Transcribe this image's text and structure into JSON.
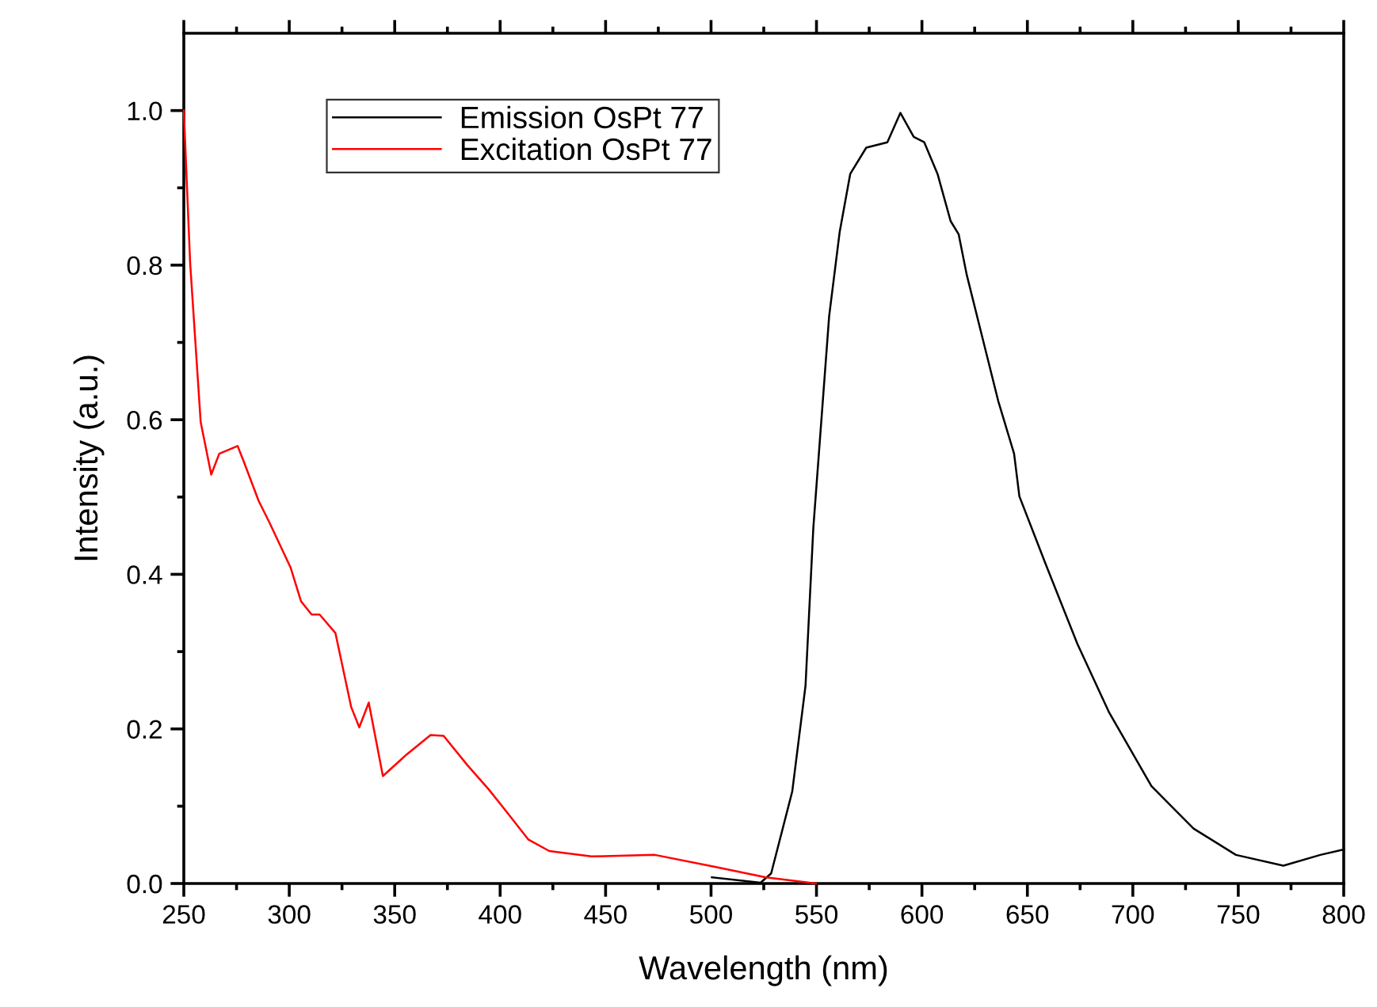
{
  "chart_data": {
    "type": "line",
    "xlabel": "Wavelength (nm)",
    "ylabel": "Intensity (a.u.)",
    "xlim": [
      250,
      800
    ],
    "xticks": [
      250,
      300,
      350,
      400,
      450,
      500,
      550,
      600,
      650,
      700,
      750,
      800
    ],
    "ylim": [
      0,
      1.1
    ],
    "yticks": [
      {
        "value": 0,
        "label": "0.0"
      },
      {
        "value": 0.2,
        "label": "0.2"
      },
      {
        "value": 0.4,
        "label": "0.4"
      },
      {
        "value": 0.6,
        "label": "0.6"
      },
      {
        "value": 0.8,
        "label": "0.8"
      },
      {
        "value": 1.0,
        "label": "1.0"
      }
    ],
    "grid": false,
    "legend": "top left",
    "marker": "none",
    "line_style": "solid",
    "series": [
      {
        "name": "Emission OsPt 77",
        "color": "#000000",
        "x": [
          500.4,
          523.5,
          528.5,
          538.5,
          544.8,
          548.5,
          556,
          561,
          566,
          573.6,
          583.6,
          589.8,
          596.1,
          601.1,
          607.4,
          613.6,
          617.4,
          621.2,
          628.7,
          636.2,
          643.7,
          646.2,
          658.7,
          673.7,
          688.8,
          708.8,
          728.8,
          748.9,
          771.4,
          788.9,
          800
        ],
        "values": [
          0.008,
          0.001,
          0.013,
          0.119,
          0.256,
          0.46,
          0.734,
          0.843,
          0.918,
          0.952,
          0.959,
          0.997,
          0.966,
          0.959,
          0.918,
          0.857,
          0.84,
          0.788,
          0.706,
          0.624,
          0.556,
          0.501,
          0.413,
          0.31,
          0.221,
          0.126,
          0.071,
          0.037,
          0.023,
          0.037,
          0.044
        ]
      },
      {
        "name": "Excitation OsPt 77",
        "color": "#ff0000",
        "x": [
          250,
          253,
          255.5,
          258,
          263,
          266.8,
          275.5,
          278,
          285.5,
          290.6,
          300.6,
          305.6,
          310.6,
          314.4,
          321.9,
          329.4,
          333.2,
          337.7,
          344.4,
          355.7,
          367,
          373.2,
          384.5,
          394.5,
          403.3,
          413.3,
          423.3,
          443.3,
          473.4,
          501,
          526,
          549.8
        ],
        "values": [
          1.0,
          0.803,
          0.7,
          0.597,
          0.529,
          0.556,
          0.566,
          0.549,
          0.495,
          0.467,
          0.409,
          0.365,
          0.348,
          0.348,
          0.324,
          0.228,
          0.202,
          0.234,
          0.139,
          0.167,
          0.192,
          0.191,
          0.153,
          0.122,
          0.092,
          0.057,
          0.042,
          0.035,
          0.037,
          0.022,
          0.008,
          0.0
        ]
      }
    ]
  }
}
